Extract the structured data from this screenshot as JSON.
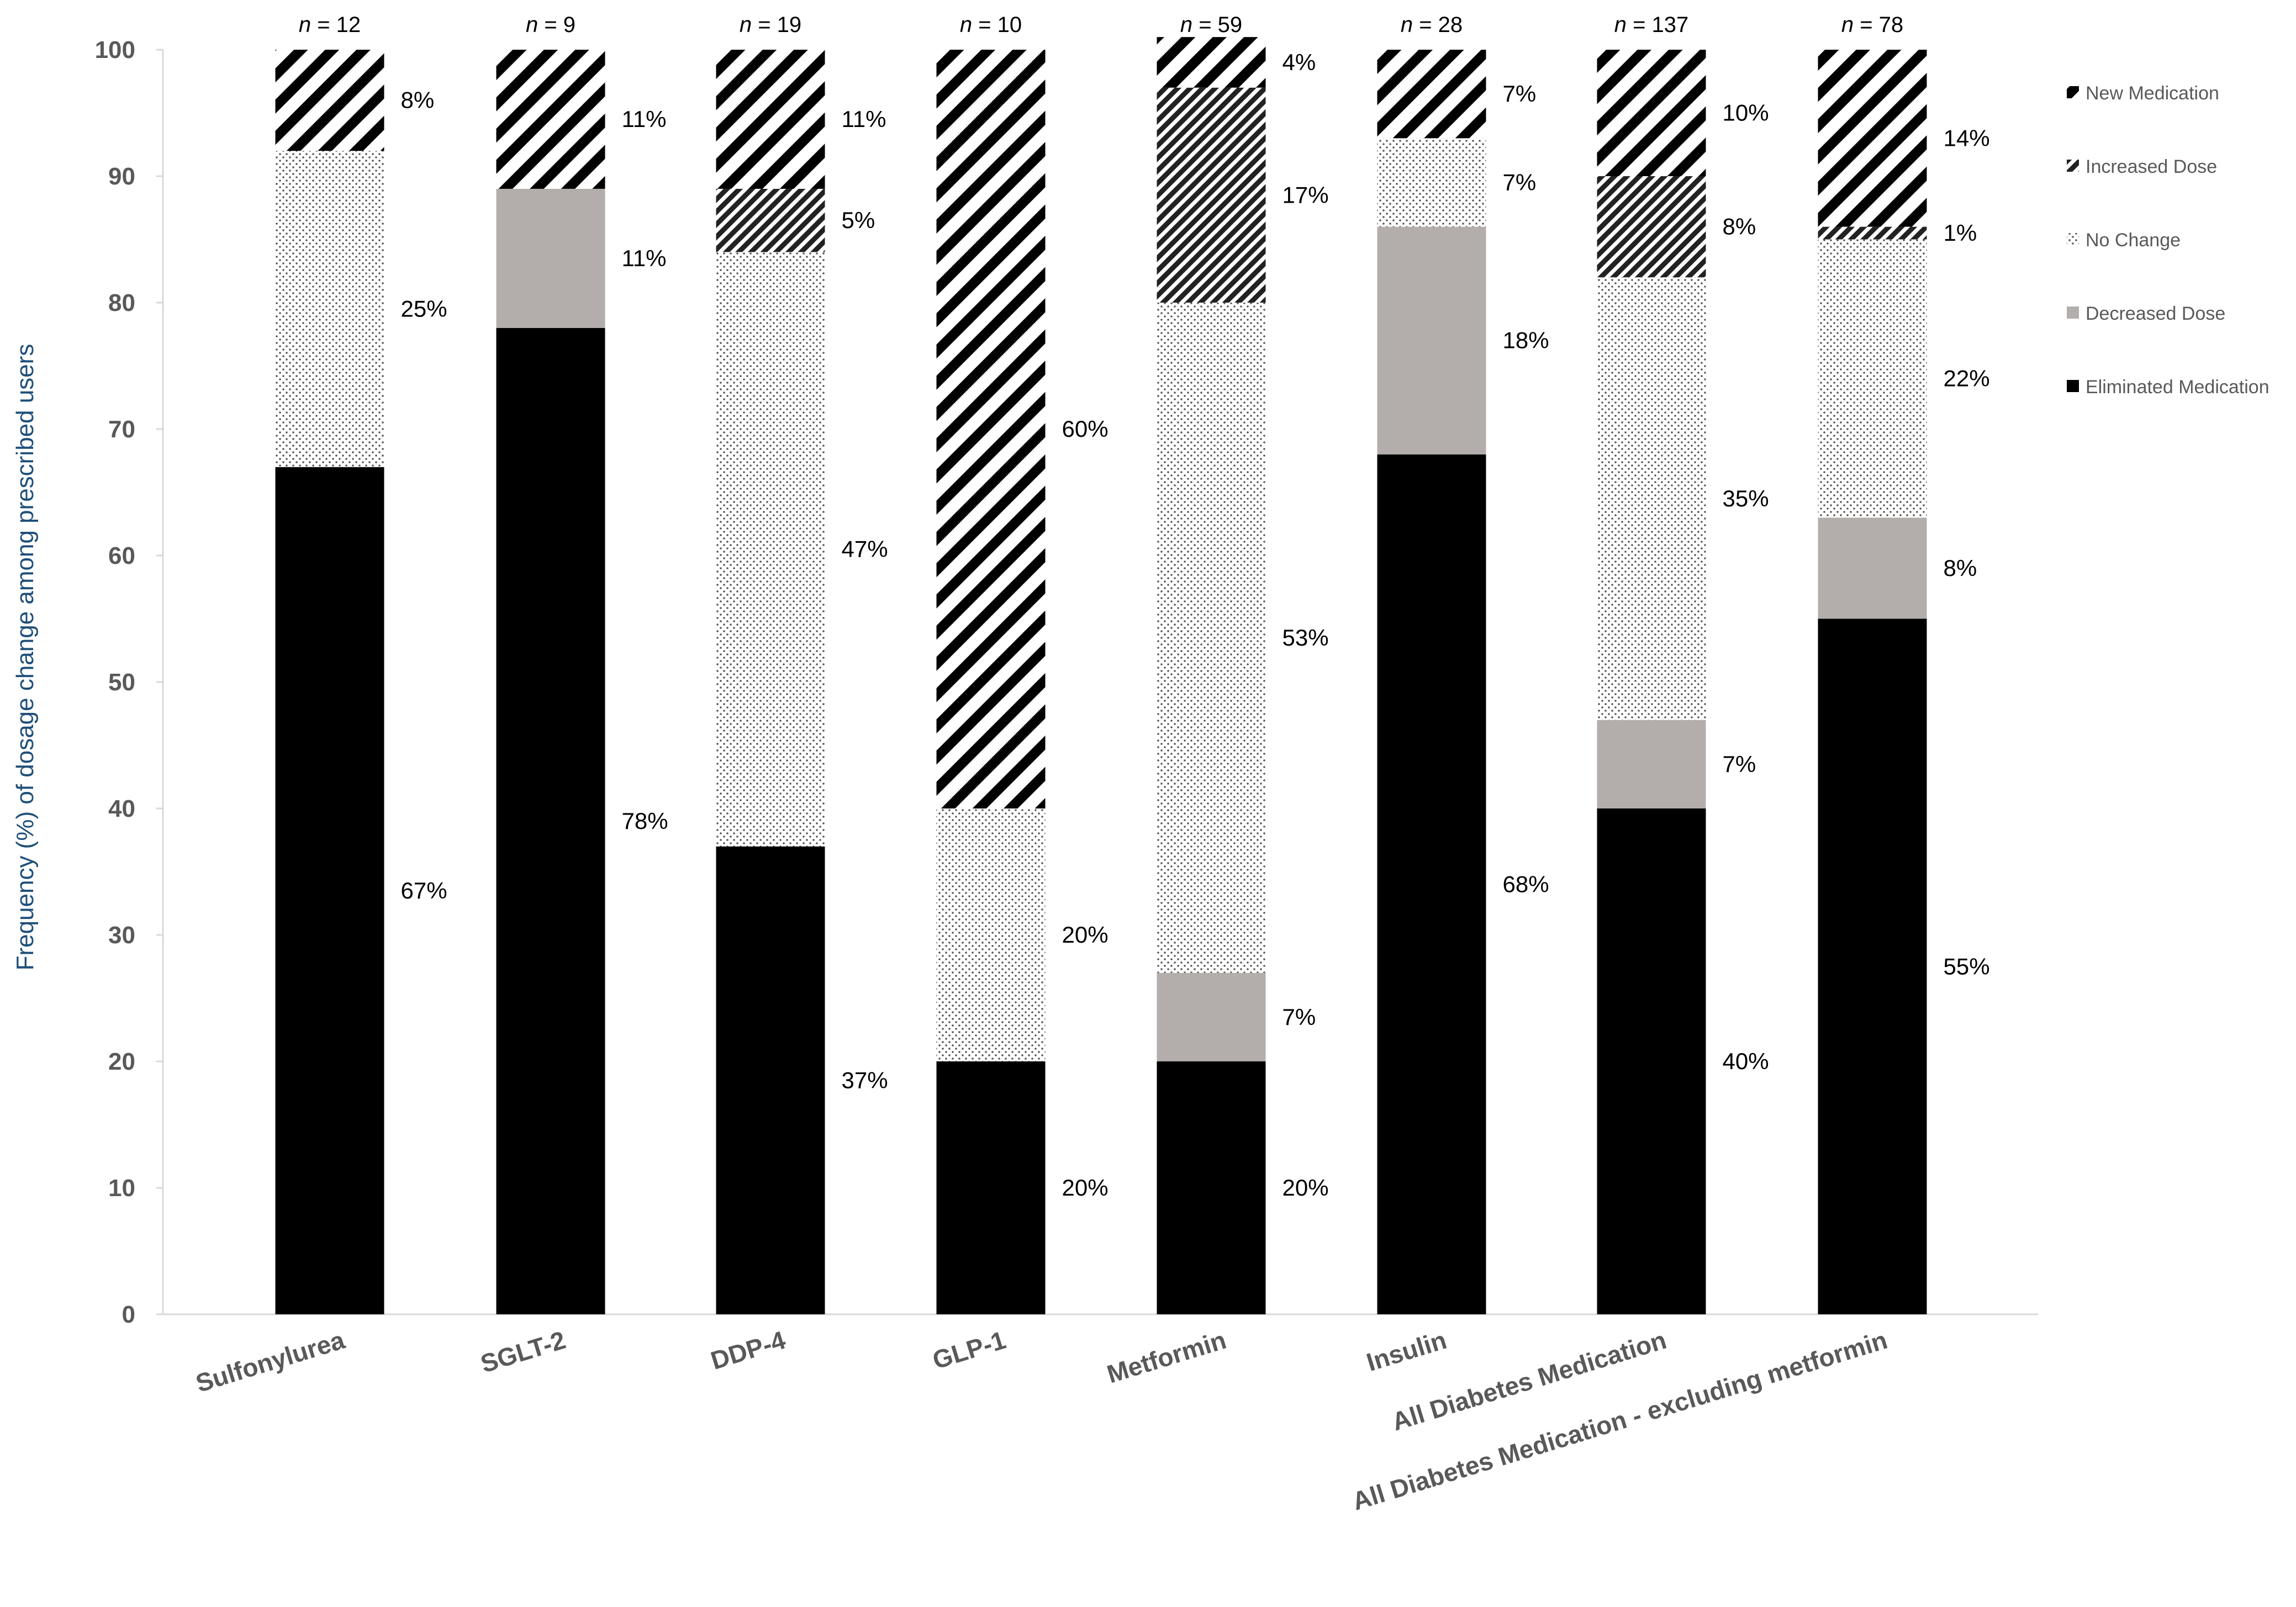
{
  "chart_data": {
    "type": "bar",
    "stacked": true,
    "title": "",
    "xlabel": "",
    "ylabel": "Frequency (%) of dosage change among prescribed users",
    "ylim": [
      0,
      100
    ],
    "yticks": [
      0,
      10,
      20,
      30,
      40,
      50,
      60,
      70,
      80,
      90,
      100
    ],
    "grid": false,
    "legend_position": "right",
    "categories": [
      "Sulfonylurea",
      "SGLT-2",
      "DDP-4",
      "GLP-1",
      "Metformin",
      "Insulin",
      "All Diabetes Medication",
      "All Diabetes Medication - excluding metformin"
    ],
    "n_prefix": "n",
    "n_values": [
      "= 12",
      "= 9",
      "= 19",
      "= 10",
      "= 59",
      "= 28",
      "= 137",
      "= 78"
    ],
    "series": [
      {
        "name": "Eliminated Medication",
        "values": [
          67,
          78,
          37,
          20,
          20,
          68,
          40,
          55
        ],
        "labels": [
          "67%",
          "78%",
          "37%",
          "20%",
          "20%",
          "68%",
          "40%",
          "55%"
        ],
        "pattern": "solid-black",
        "color": "#000000"
      },
      {
        "name": "Decreased Dose",
        "values": [
          0,
          11,
          0,
          0,
          7,
          18,
          7,
          8
        ],
        "labels": [
          "",
          "11%",
          "",
          "",
          "7%",
          "18%",
          "7%",
          "8%"
        ],
        "pattern": "solid-gray",
        "color": "#b3aeab"
      },
      {
        "name": "No Change",
        "values": [
          25,
          0,
          47,
          20,
          53,
          7,
          35,
          22
        ],
        "labels": [
          "25%",
          "",
          "47%",
          "20%",
          "53%",
          "7%",
          "35%",
          "22%"
        ],
        "pattern": "dots",
        "color": "#7f7f7f"
      },
      {
        "name": "Increased Dose",
        "values": [
          0,
          0,
          5,
          0,
          17,
          0,
          8,
          1
        ],
        "labels": [
          "",
          "",
          "5%",
          "",
          "17%",
          "",
          "8%",
          "1%"
        ],
        "pattern": "dense-diagonal",
        "color": "#333333"
      },
      {
        "name": "New Medication",
        "values": [
          8,
          11,
          11,
          60,
          4,
          7,
          10,
          14
        ],
        "labels": [
          "8%",
          "11%",
          "11%",
          "60%",
          "4%",
          "7%",
          "10%",
          "14%"
        ],
        "pattern": "wide-diagonal",
        "color": "#000000"
      }
    ],
    "legend_order": [
      "New Medication",
      "Increased Dose",
      "No Change",
      "Decreased Dose",
      "Eliminated Medication"
    ]
  }
}
